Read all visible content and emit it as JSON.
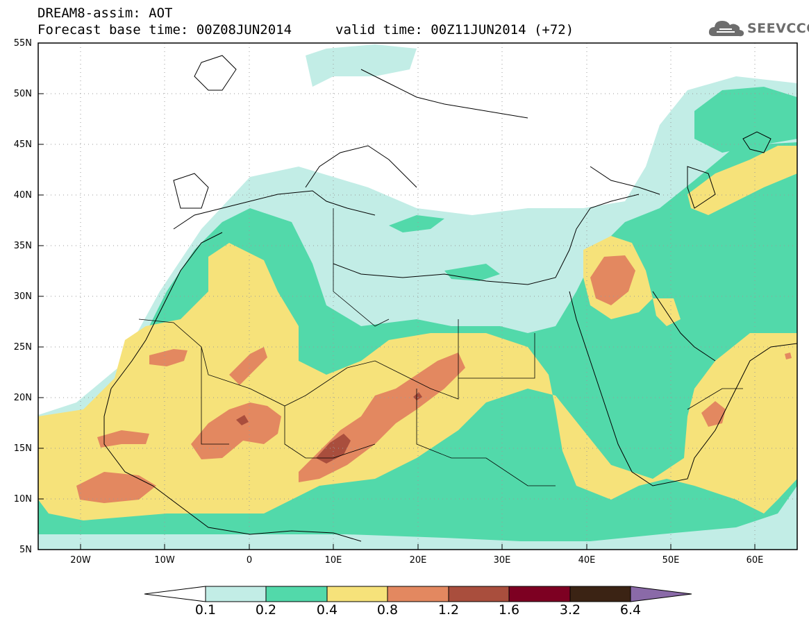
{
  "header": {
    "title": "DREAM8-assim: AOT",
    "base_time": "Forecast base time: 00Z08JUN2014",
    "valid_time": "valid time: 00Z11JUN2014 (+72)"
  },
  "logo": {
    "text": "SEEVCCC",
    "icon": "cloud-icon"
  },
  "map": {
    "type": "filled-contour",
    "variable": "AOT",
    "lat_range": [
      5,
      55
    ],
    "lon_range": [
      -25,
      65
    ],
    "lat_ticks": [
      "55N",
      "50N",
      "45N",
      "40N",
      "35N",
      "30N",
      "25N",
      "20N",
      "15N",
      "10N",
      "5N"
    ],
    "lon_ticks": [
      "20W",
      "10W",
      "0",
      "10E",
      "20E",
      "30E",
      "40E",
      "50E",
      "60E"
    ],
    "grid": true
  },
  "colorbar": {
    "levels": [
      "0.1",
      "0.2",
      "0.4",
      "0.8",
      "1.2",
      "1.6",
      "3.2",
      "6.4"
    ],
    "colors": [
      "#ffffff",
      "#c2ede6",
      "#52d9aa",
      "#f6e27a",
      "#e38860",
      "#a94e3d",
      "#7d0022",
      "#3b2314",
      "#8a6aa8"
    ]
  }
}
